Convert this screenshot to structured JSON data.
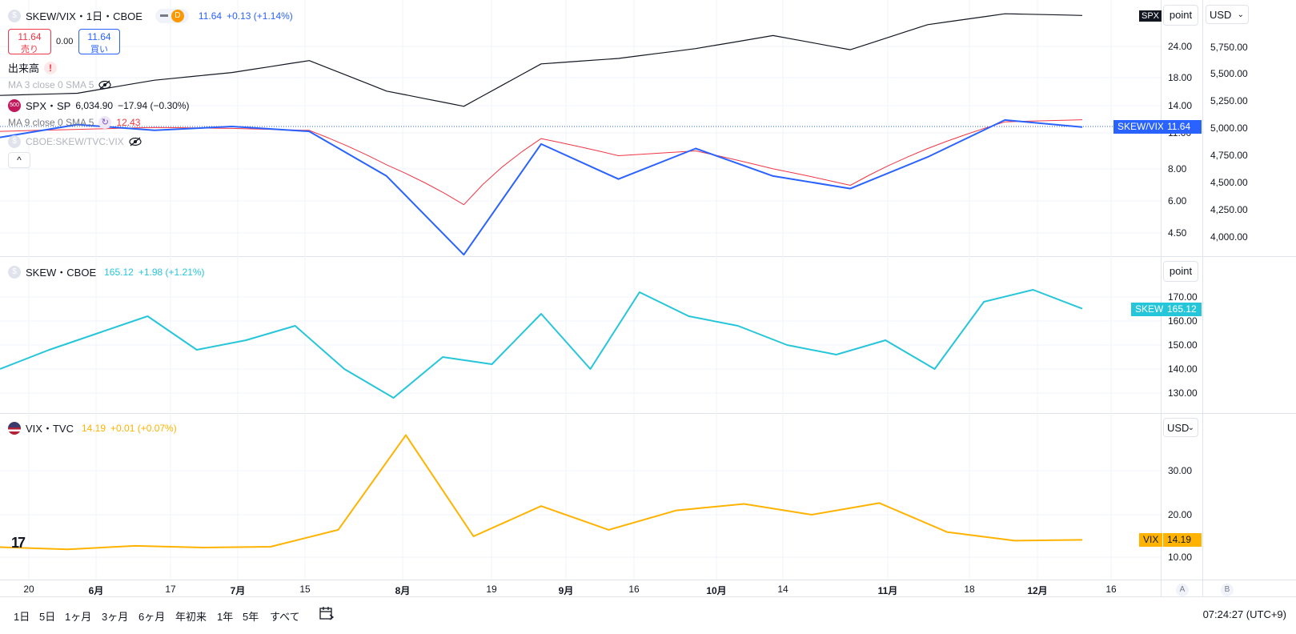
{
  "header": {
    "symbol_title": "SKEW/VIX・1日・CBOE",
    "interval_badge": "D",
    "price": "11.64",
    "change": "+0.13 (+1.14%)",
    "sell_price": "11.64",
    "sell_label": "売り",
    "spread": "0.00",
    "buy_price": "11.64",
    "buy_label": "買い"
  },
  "main_pane": {
    "volume_label": "出来高",
    "ma3_label": "MA 3 close 0 SMA 5",
    "spx_label": "SPX・SP",
    "spx_price": "6,034.90",
    "spx_change": "−17.94 (−0.30%)",
    "ma9_label": "MA 9 close 0 SMA 5",
    "ma9_value": "12.43",
    "cboe_label": "CBOE:SKEW/TVC:VIX",
    "scale_button": "point",
    "currency_button": "USD",
    "spx_badge": "SPX",
    "skewvix_tag_label": "SKEW/VIX",
    "skewvix_tag_value": "11.64",
    "left_axis": [
      "24.00",
      "18.00",
      "14.00",
      "11.00",
      "8.00",
      "6.00",
      "4.50"
    ],
    "right_axis": [
      "5,750.00",
      "5,500.00",
      "5,250.00",
      "5,000.00",
      "4,750.00",
      "4,500.00",
      "4,250.00",
      "4,000.00"
    ]
  },
  "skew_pane": {
    "title": "SKEW・CBOE",
    "price": "165.12",
    "change": "+1.98 (+1.21%)",
    "scale_button": "point",
    "tag_label": "SKEW",
    "tag_value": "165.12",
    "axis": [
      "170.00",
      "160.00",
      "150.00",
      "140.00",
      "130.00"
    ]
  },
  "vix_pane": {
    "title": "VIX・TVC",
    "price": "14.19",
    "change": "+0.01 (+0.07%)",
    "currency_button": "USD",
    "tag_label": "VIX",
    "tag_value": "14.19",
    "axis": [
      "30.00",
      "20.00",
      "10.00"
    ]
  },
  "time_axis": {
    "labels": [
      "20",
      "6月",
      "17",
      "7月",
      "15",
      "8月",
      "19",
      "9月",
      "16",
      "10月",
      "14",
      "11月",
      "18",
      "12月",
      "16"
    ],
    "bold": [
      "6月",
      "7月",
      "8月",
      "9月",
      "10月",
      "11月",
      "12月"
    ],
    "scale_a": "A",
    "scale_b": "B"
  },
  "bottom_bar": {
    "ranges": [
      "1日",
      "5日",
      "1ヶ月",
      "3ヶ月",
      "6ヶ月",
      "年初来",
      "1年",
      "5年",
      "すべて"
    ],
    "clock": "07:24:27 (UTC+9)"
  },
  "colors": {
    "skewvix": "#2962ff",
    "ma9": "#f23645",
    "spx": "#131722",
    "skew": "#26c6da",
    "vix": "#ffb300"
  },
  "chart_data": [
    {
      "type": "line",
      "title": "SKEW/VIX・1日・CBOE",
      "x": [
        "5月20日",
        "6月",
        "6月17日",
        "7月",
        "7月15日",
        "8月",
        "8月19日",
        "9月",
        "9月16日",
        "10月",
        "10月14日",
        "11月",
        "11月18日",
        "12月",
        "12月16日"
      ],
      "series": [
        {
          "name": "SKEW/VIX",
          "values": [
            10.6,
            11.9,
            11.3,
            11.7,
            11.2,
            7.5,
            3.7,
            10.0,
            7.3,
            9.6,
            7.5,
            6.7,
            8.9,
            12.4,
            11.64
          ]
        },
        {
          "name": "MA 9",
          "values": [
            11.2,
            11.4,
            11.6,
            11.5,
            11.3,
            8.3,
            5.8,
            10.5,
            9.0,
            9.4,
            8.0,
            6.9,
            9.6,
            12.2,
            12.43
          ]
        },
        {
          "name": "SPX",
          "values": [
            5300,
            5320,
            5440,
            5510,
            5620,
            5340,
            5200,
            5590,
            5640,
            5730,
            5850,
            5720,
            5950,
            6050,
            6034.9
          ]
        }
      ]
    },
    {
      "type": "line",
      "title": "SKEW・CBOE",
      "series": [
        {
          "name": "SKEW",
          "values": [
            140,
            148,
            155,
            162,
            148,
            152,
            158,
            140,
            128,
            145,
            142,
            163,
            140,
            172,
            162,
            158,
            150,
            146,
            152,
            140,
            168,
            173,
            165.12
          ]
        }
      ],
      "ylim": [
        125,
        175
      ]
    },
    {
      "type": "line",
      "title": "VIX・TVC",
      "series": [
        {
          "name": "VIX",
          "values": [
            12.5,
            12.0,
            12.8,
            12.4,
            12.6,
            16.5,
            38.4,
            15.0,
            22.0,
            16.5,
            21.0,
            22.5,
            20.0,
            22.7,
            16.0,
            14.0,
            14.19
          ]
        }
      ],
      "ylim": [
        10,
        40
      ]
    }
  ]
}
